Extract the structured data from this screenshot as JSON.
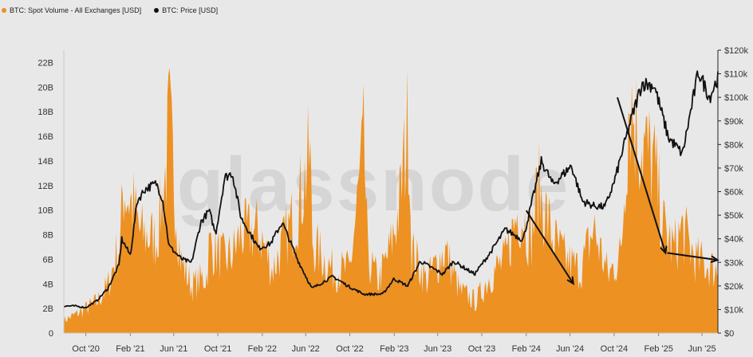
{
  "legend": {
    "volume_label": "BTC: Spot Volume - All Exchanges [USD]",
    "price_label": "BTC: Price [USD]"
  },
  "watermark": "glassnode",
  "colors": {
    "volume": "#ec9122",
    "price": "#111111",
    "background": "#e9e8e8",
    "arrow": "#111111"
  },
  "chart_data": {
    "type": "area",
    "x_ticks": [
      "Oct '20",
      "Feb '21",
      "Jun '21",
      "Oct '21",
      "Feb '22",
      "Jun '22",
      "Oct '22",
      "Feb '23",
      "Jun '23",
      "Oct '23",
      "Feb '24",
      "Jun '24",
      "Oct '24",
      "Feb '25",
      "Jun '25"
    ],
    "y_left_ticks": [
      "0",
      "2B",
      "4B",
      "6B",
      "8B",
      "10B",
      "12B",
      "14B",
      "16B",
      "18B",
      "20B",
      "22B"
    ],
    "y_right_ticks": [
      "$0",
      "$10k",
      "$20k",
      "$30k",
      "$40k",
      "$50k",
      "$60k",
      "$70k",
      "$80k",
      "$90k",
      "$100k",
      "$110k",
      "$120k"
    ],
    "y_left_range": [
      0,
      23000000000
    ],
    "y_right_range": [
      0,
      120000
    ],
    "x_range": [
      "2020-08-01",
      "2025-07-15"
    ],
    "series": [
      {
        "name": "BTC: Spot Volume - All Exchanges [USD]",
        "axis": "left",
        "points": [
          [
            "2020-08-01",
            1.2
          ],
          [
            "2020-09-15",
            2.0
          ],
          [
            "2020-11-01",
            3.0
          ],
          [
            "2020-12-01",
            4.5
          ],
          [
            "2021-01-05",
            9.0
          ],
          [
            "2021-01-12",
            14.0
          ],
          [
            "2021-02-10",
            12.0
          ],
          [
            "2021-03-01",
            9.5
          ],
          [
            "2021-04-15",
            9.0
          ],
          [
            "2021-05-12",
            16.0
          ],
          [
            "2021-05-19",
            20.5
          ],
          [
            "2021-06-20",
            7.0
          ],
          [
            "2021-07-20",
            4.5
          ],
          [
            "2021-09-01",
            5.5
          ],
          [
            "2021-09-07",
            8.5
          ],
          [
            "2021-10-20",
            7.0
          ],
          [
            "2021-11-10",
            7.5
          ],
          [
            "2021-12-04",
            9.5
          ],
          [
            "2022-01-22",
            9.8
          ],
          [
            "2022-03-01",
            6.0
          ],
          [
            "2022-05-10",
            12.0
          ],
          [
            "2022-06-13",
            17.0
          ],
          [
            "2022-06-20",
            8.5
          ],
          [
            "2022-08-15",
            6.0
          ],
          [
            "2022-10-01",
            6.0
          ],
          [
            "2022-11-09",
            18.0
          ],
          [
            "2022-11-20",
            7.0
          ],
          [
            "2022-12-20",
            5.0
          ],
          [
            "2023-01-20",
            8.0
          ],
          [
            "2023-02-15",
            12.0
          ],
          [
            "2023-03-13",
            21.0
          ],
          [
            "2023-03-20",
            8.0
          ],
          [
            "2023-05-01",
            5.0
          ],
          [
            "2023-06-21",
            8.0
          ],
          [
            "2023-08-01",
            4.0
          ],
          [
            "2023-09-15",
            3.0
          ],
          [
            "2023-10-24",
            5.5
          ],
          [
            "2023-12-05",
            7.0
          ],
          [
            "2024-01-11",
            12.0
          ],
          [
            "2024-02-15",
            9.0
          ],
          [
            "2024-03-05",
            14.0
          ],
          [
            "2024-04-15",
            9.0
          ],
          [
            "2024-05-20",
            7.0
          ],
          [
            "2024-07-01",
            6.0
          ],
          [
            "2024-08-05",
            10.0
          ],
          [
            "2024-09-15",
            5.5
          ],
          [
            "2024-10-20",
            7.5
          ],
          [
            "2024-11-12",
            23.0
          ],
          [
            "2024-12-05",
            19.0
          ],
          [
            "2025-01-20",
            16.0
          ],
          [
            "2025-02-15",
            10.0
          ],
          [
            "2025-03-15",
            8.0
          ],
          [
            "2025-04-07",
            10.0
          ],
          [
            "2025-05-15",
            7.0
          ],
          [
            "2025-07-14",
            6.0
          ]
        ]
      },
      {
        "name": "BTC: Price [USD]",
        "axis": "right",
        "points": [
          [
            "2020-08-01",
            11500
          ],
          [
            "2020-09-01",
            11500
          ],
          [
            "2020-10-01",
            10800
          ],
          [
            "2020-11-01",
            13800
          ],
          [
            "2020-12-01",
            19000
          ],
          [
            "2021-01-01",
            29000
          ],
          [
            "2021-01-08",
            40000
          ],
          [
            "2021-02-01",
            33000
          ],
          [
            "2021-02-20",
            56000
          ],
          [
            "2021-03-13",
            61000
          ],
          [
            "2021-04-14",
            63500
          ],
          [
            "2021-05-01",
            57000
          ],
          [
            "2021-05-19",
            37000
          ],
          [
            "2021-06-22",
            31500
          ],
          [
            "2021-07-20",
            29800
          ],
          [
            "2021-08-15",
            47000
          ],
          [
            "2021-09-07",
            52000
          ],
          [
            "2021-09-25",
            42000
          ],
          [
            "2021-10-20",
            66000
          ],
          [
            "2021-11-10",
            68000
          ],
          [
            "2021-12-04",
            49000
          ],
          [
            "2022-01-22",
            36000
          ],
          [
            "2022-02-24",
            38000
          ],
          [
            "2022-03-28",
            47000
          ],
          [
            "2022-05-10",
            31000
          ],
          [
            "2022-06-18",
            18900
          ],
          [
            "2022-08-15",
            24000
          ],
          [
            "2022-10-01",
            19500
          ],
          [
            "2022-11-09",
            16500
          ],
          [
            "2022-12-31",
            16500
          ],
          [
            "2023-01-31",
            23000
          ],
          [
            "2023-03-10",
            20000
          ],
          [
            "2023-04-14",
            30500
          ],
          [
            "2023-06-15",
            25000
          ],
          [
            "2023-07-15",
            30500
          ],
          [
            "2023-09-11",
            25000
          ],
          [
            "2023-10-24",
            34000
          ],
          [
            "2023-12-05",
            44000
          ],
          [
            "2024-01-23",
            39500
          ],
          [
            "2024-03-14",
            73000
          ],
          [
            "2024-04-15",
            63000
          ],
          [
            "2024-06-05",
            71000
          ],
          [
            "2024-07-05",
            56000
          ],
          [
            "2024-08-05",
            54000
          ],
          [
            "2024-09-06",
            53500
          ],
          [
            "2024-10-01",
            64000
          ],
          [
            "2024-11-12",
            88000
          ],
          [
            "2024-12-17",
            106000
          ],
          [
            "2025-01-20",
            105000
          ],
          [
            "2025-02-28",
            83000
          ],
          [
            "2025-04-08",
            76000
          ],
          [
            "2025-05-22",
            111000
          ],
          [
            "2025-06-22",
            100000
          ],
          [
            "2025-07-14",
            108000
          ]
        ]
      }
    ],
    "annotations": [
      {
        "type": "arrow",
        "from": [
          "2024-02-01",
          52000
        ],
        "to": [
          "2024-06-10",
          21000
        ]
      },
      {
        "type": "arrow",
        "from": [
          "2024-10-10",
          100000
        ],
        "to": [
          "2025-02-20",
          34000
        ]
      },
      {
        "type": "arrow",
        "from": [
          "2025-02-25",
          34000
        ],
        "to": [
          "2025-07-14",
          31000
        ]
      }
    ],
    "grid": false,
    "legend_position": "top-left"
  }
}
